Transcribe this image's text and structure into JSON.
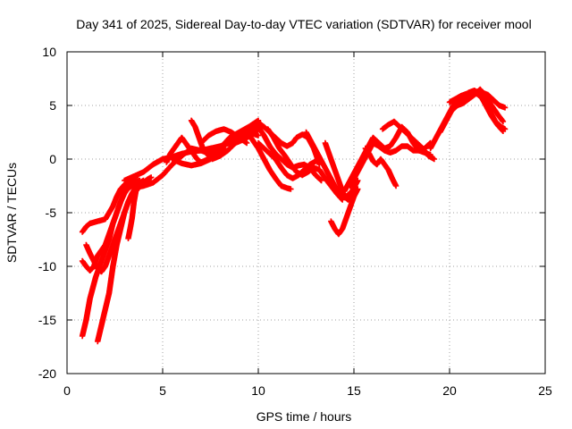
{
  "chart_data": {
    "type": "scatter",
    "title": "Day 341 of 2025, Sidereal Day-to-day VTEC variation (SDTVAR) for receiver mool",
    "xlabel": "GPS time / hours",
    "ylabel": "SDTVAR / TECUs",
    "xlim": [
      0,
      25
    ],
    "ylim": [
      -20,
      10
    ],
    "xticks": [
      0,
      5,
      10,
      15,
      20,
      25
    ],
    "yticks": [
      -20,
      -15,
      -10,
      -5,
      0,
      5,
      10
    ],
    "xtick_labels": [
      "0",
      "5",
      "10",
      "15",
      "20",
      "25"
    ],
    "ytick_labels": [
      "-20",
      "-15",
      "-10",
      "-5",
      "0",
      "5",
      "10"
    ],
    "grid": true,
    "marker": "plus",
    "color": "#ff0000",
    "series": [
      {
        "name": "track-a",
        "x": [
          0.8,
          1.0,
          1.2,
          1.4,
          1.6,
          1.8,
          2.0,
          2.2,
          2.4,
          2.6,
          2.8,
          3.0,
          3.2,
          3.4,
          3.6
        ],
        "y": [
          -6.8,
          -6.3,
          -6.0,
          -5.9,
          -5.8,
          -5.7,
          -5.6,
          -5.0,
          -4.4,
          -3.5,
          -2.8,
          -2.4,
          -2.1,
          -1.9,
          -1.7
        ]
      },
      {
        "name": "track-b",
        "x": [
          0.8,
          1.0,
          1.2,
          1.5,
          1.8,
          2.0,
          2.2,
          2.4,
          2.6,
          2.8,
          3.0,
          3.2,
          3.5,
          3.8
        ],
        "y": [
          -16.5,
          -15.0,
          -13.0,
          -11.0,
          -9.5,
          -8.5,
          -7.5,
          -6.0,
          -5.0,
          -4.0,
          -3.0,
          -2.5,
          -2.2,
          -2.0
        ]
      },
      {
        "name": "track-c",
        "x": [
          0.8,
          1.0,
          1.2,
          1.4,
          1.6,
          1.8,
          2.0,
          2.2,
          2.4,
          2.6,
          2.8,
          3.0,
          3.2,
          3.4
        ],
        "y": [
          -9.5,
          -10.0,
          -10.4,
          -10.0,
          -9.0,
          -8.5,
          -8.0,
          -7.0,
          -6.0,
          -5.0,
          -4.0,
          -3.2,
          -2.7,
          -2.5
        ]
      },
      {
        "name": "track-d",
        "x": [
          1.6,
          1.8,
          2.0,
          2.2,
          2.4,
          2.6,
          2.8,
          3.0,
          3.2,
          3.4,
          3.6,
          3.8,
          4.0
        ],
        "y": [
          -17.0,
          -15.5,
          -14.0,
          -12.5,
          -10.0,
          -8.0,
          -6.5,
          -5.0,
          -4.0,
          -3.2,
          -2.6,
          -2.2,
          -2.0
        ]
      },
      {
        "name": "track-e",
        "x": [
          1.0,
          1.2,
          1.4,
          1.6,
          1.8,
          2.0,
          2.2,
          2.4,
          2.6,
          2.8,
          3.0,
          3.2,
          3.4
        ],
        "y": [
          -8.0,
          -8.8,
          -9.5,
          -10.2,
          -10.5,
          -10.0,
          -9.0,
          -8.0,
          -7.0,
          -6.0,
          -5.0,
          -4.0,
          -3.2
        ]
      },
      {
        "name": "track-f",
        "x": [
          3.2,
          3.3,
          3.4,
          3.5,
          3.6,
          3.8,
          4.0,
          4.2,
          4.4
        ],
        "y": [
          -7.4,
          -6.5,
          -5.5,
          -4.0,
          -3.0,
          -2.5,
          -2.2,
          -1.9,
          -1.7
        ]
      },
      {
        "name": "track-g",
        "x": [
          3.0,
          3.5,
          4.0,
          4.5,
          5.0,
          5.5,
          6.0,
          6.5,
          7.0,
          7.5,
          8.0,
          8.5,
          9.0,
          9.5,
          10.0
        ],
        "y": [
          -2.0,
          -1.6,
          -1.2,
          -0.5,
          0.0,
          0.2,
          0.5,
          0.7,
          0.8,
          1.0,
          1.2,
          1.5,
          1.8,
          2.5,
          3.5
        ]
      },
      {
        "name": "track-h",
        "x": [
          3.5,
          4.0,
          4.5,
          5.0,
          5.5,
          6.0,
          6.5,
          7.0,
          7.5,
          8.0,
          8.5,
          9.0,
          9.5,
          10.0
        ],
        "y": [
          -2.7,
          -2.5,
          -2.2,
          -1.5,
          -0.5,
          0.3,
          1.0,
          0.8,
          0.5,
          1.0,
          2.0,
          2.5,
          3.0,
          3.6
        ]
      },
      {
        "name": "track-i",
        "x": [
          5.2,
          5.4,
          5.6,
          5.8,
          6.0,
          6.2,
          6.4,
          6.6,
          6.8,
          7.0,
          7.4,
          7.8,
          8.2
        ],
        "y": [
          -0.3,
          0.5,
          1.0,
          1.5,
          2.0,
          1.5,
          1.0,
          0.5,
          0.0,
          -0.3,
          0.0,
          0.5,
          1.0
        ]
      },
      {
        "name": "track-j",
        "x": [
          6.5,
          6.7,
          6.9,
          7.1,
          7.3,
          7.6,
          8.0,
          8.4,
          8.8,
          9.2,
          9.6,
          10.0
        ],
        "y": [
          3.6,
          3.0,
          2.0,
          1.0,
          0.5,
          0.0,
          0.3,
          0.8,
          1.5,
          1.8,
          2.2,
          2.8
        ]
      },
      {
        "name": "track-k",
        "x": [
          5.5,
          6.0,
          6.5,
          7.0,
          7.5,
          8.0,
          8.5,
          9.0,
          9.5,
          10.0
        ],
        "y": [
          0.0,
          -0.4,
          -0.6,
          -0.4,
          0.0,
          0.8,
          1.8,
          2.4,
          2.5,
          2.2
        ]
      },
      {
        "name": "track-l",
        "x": [
          7.0,
          7.4,
          7.8,
          8.2,
          8.6,
          9.0,
          9.4
        ],
        "y": [
          1.5,
          2.2,
          2.6,
          2.8,
          2.5,
          2.0,
          1.5
        ]
      },
      {
        "name": "track-m",
        "x": [
          9.5,
          9.8,
          10.0,
          10.3,
          10.6,
          10.9,
          11.2,
          11.5,
          11.8,
          12.0,
          12.3,
          12.6,
          12.9,
          13.2
        ],
        "y": [
          2.5,
          3.0,
          3.4,
          3.0,
          2.5,
          2.0,
          1.5,
          1.2,
          1.5,
          2.0,
          2.3,
          2.0,
          1.0,
          -0.5
        ]
      },
      {
        "name": "track-n",
        "x": [
          9.5,
          10.0,
          10.3,
          10.6,
          10.9,
          11.2,
          11.5,
          11.7
        ],
        "y": [
          2.3,
          1.0,
          0.0,
          -1.0,
          -1.8,
          -2.5,
          -2.7,
          -2.8
        ]
      },
      {
        "name": "track-o",
        "x": [
          10.0,
          10.3,
          10.6,
          10.9,
          11.2,
          11.5,
          11.8,
          12.1,
          12.4,
          12.7,
          13.0
        ],
        "y": [
          1.5,
          1.0,
          0.5,
          0.0,
          -0.8,
          -1.5,
          -1.8,
          -1.5,
          -1.0,
          -0.5,
          -0.2
        ]
      },
      {
        "name": "track-p",
        "x": [
          10.0,
          10.3,
          10.6,
          10.9,
          11.2,
          11.5,
          11.8,
          12.1,
          12.4,
          12.7,
          13.0,
          13.3
        ],
        "y": [
          3.0,
          2.2,
          1.2,
          0.5,
          0.0,
          -0.5,
          -0.8,
          -0.6,
          -0.5,
          -0.8,
          -1.5,
          -2.0
        ]
      },
      {
        "name": "track-q",
        "x": [
          10.5,
          10.8,
          11.1,
          11.4,
          11.7,
          12.0,
          12.3,
          12.6,
          12.9,
          13.2,
          13.5,
          13.8,
          14.1,
          14.4
        ],
        "y": [
          2.8,
          2.0,
          1.0,
          0.3,
          -0.5,
          -1.2,
          -1.5,
          -1.2,
          -0.8,
          -1.0,
          -1.8,
          -2.5,
          -3.2,
          -3.8
        ]
      },
      {
        "name": "track-r",
        "x": [
          12.5,
          12.8,
          13.1,
          13.4,
          13.7,
          14.0,
          14.3,
          14.6,
          14.9,
          15.2
        ],
        "y": [
          2.5,
          1.5,
          0.5,
          -0.5,
          -1.5,
          -2.5,
          -3.2,
          -3.5,
          -3.0,
          -2.0
        ]
      },
      {
        "name": "track-s",
        "x": [
          13.5,
          13.7,
          13.9,
          14.1,
          14.3,
          14.5,
          14.7,
          14.9,
          15.1
        ],
        "y": [
          1.5,
          0.5,
          -0.5,
          -1.5,
          -2.5,
          -3.5,
          -3.8,
          -3.5,
          -3.0
        ]
      },
      {
        "name": "track-t",
        "x": [
          13.8,
          14.0,
          14.2,
          14.4,
          14.6,
          14.8,
          15.0,
          15.2
        ],
        "y": [
          -5.8,
          -6.5,
          -7.0,
          -6.5,
          -5.5,
          -4.5,
          -3.5,
          -2.8
        ]
      },
      {
        "name": "track-u",
        "x": [
          14.5,
          14.8,
          15.1,
          15.4,
          15.7,
          16.0,
          16.3,
          16.6,
          16.9,
          17.2,
          17.5,
          17.8,
          18.1,
          18.4,
          18.7,
          19.0
        ],
        "y": [
          -3.0,
          -2.0,
          -1.0,
          0.0,
          1.0,
          2.0,
          1.5,
          1.0,
          1.2,
          2.0,
          3.0,
          2.5,
          1.5,
          0.8,
          1.0,
          1.5
        ]
      },
      {
        "name": "track-v",
        "x": [
          14.8,
          15.1,
          15.4,
          15.7,
          16.0,
          16.3,
          16.6,
          16.9,
          17.2,
          17.5,
          17.8,
          18.1,
          18.4,
          18.7,
          19.0
        ],
        "y": [
          -2.5,
          -1.5,
          -0.5,
          0.5,
          1.5,
          1.2,
          0.8,
          0.6,
          0.8,
          1.2,
          1.2,
          0.8,
          0.8,
          0.6,
          0.4
        ]
      },
      {
        "name": "track-w",
        "x": [
          15.6,
          15.8,
          16.0,
          16.2,
          16.4,
          16.6,
          16.8,
          17.0,
          17.2
        ],
        "y": [
          1.0,
          0.5,
          -0.2,
          -0.5,
          0.0,
          -0.5,
          -1.0,
          -1.8,
          -2.5
        ]
      },
      {
        "name": "track-x",
        "x": [
          16.5,
          16.8,
          17.1,
          17.4,
          17.7,
          18.0,
          18.3,
          18.6,
          18.9,
          19.2
        ],
        "y": [
          2.8,
          3.2,
          3.5,
          3.0,
          2.5,
          2.0,
          1.5,
          1.0,
          0.3,
          0.0
        ]
      },
      {
        "name": "track-y",
        "x": [
          19.0,
          19.3,
          19.6,
          19.9,
          20.2,
          20.5,
          20.8,
          21.1,
          21.4,
          21.7,
          22.0,
          22.3,
          22.6,
          22.9
        ],
        "y": [
          1.0,
          2.0,
          3.0,
          4.0,
          5.0,
          5.5,
          5.8,
          6.0,
          6.3,
          6.2,
          6.0,
          5.5,
          5.0,
          4.8
        ]
      },
      {
        "name": "track-z",
        "x": [
          19.5,
          19.8,
          20.1,
          20.4,
          20.7,
          21.0,
          21.3,
          21.6,
          21.9,
          22.2,
          22.5,
          22.8
        ],
        "y": [
          2.5,
          3.5,
          4.5,
          5.0,
          5.2,
          5.6,
          6.0,
          6.5,
          5.8,
          5.0,
          4.2,
          3.5
        ]
      },
      {
        "name": "track-aa",
        "x": [
          20.0,
          20.3,
          20.6,
          20.9,
          21.2,
          21.5,
          21.8,
          22.1,
          22.4,
          22.7,
          22.9
        ],
        "y": [
          5.3,
          5.6,
          5.9,
          6.1,
          6.3,
          6.0,
          5.5,
          4.5,
          3.5,
          3.0,
          2.8
        ]
      },
      {
        "name": "track-ab",
        "x": [
          21.0,
          21.3,
          21.6,
          21.9,
          22.2,
          22.5,
          22.8
        ],
        "y": [
          6.2,
          6.4,
          6.0,
          5.0,
          4.0,
          3.2,
          2.6
        ]
      }
    ]
  }
}
